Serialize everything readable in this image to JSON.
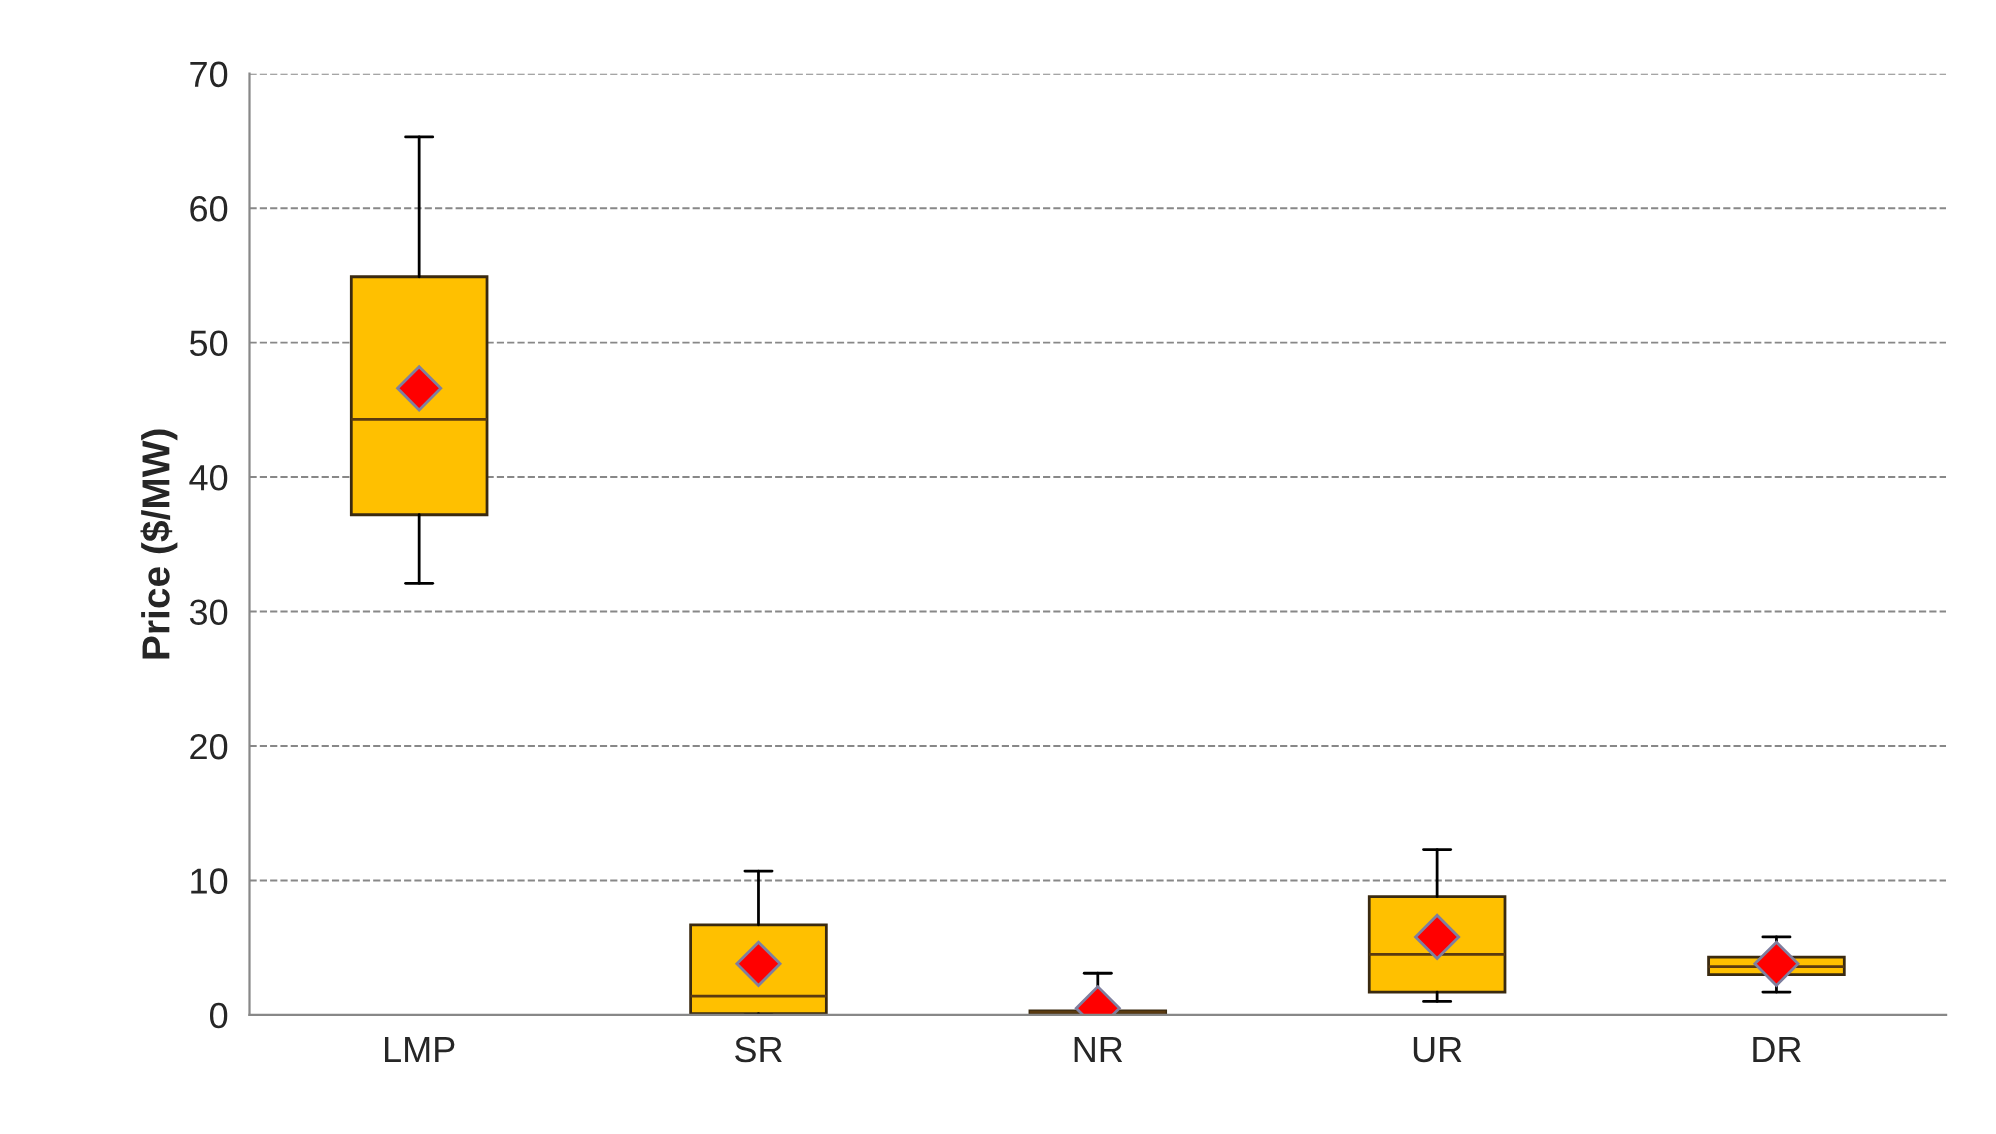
{
  "chart_data": {
    "type": "box",
    "ylabel": "Price ($/MW)",
    "color": "#ffc000",
    "marker": "diamond",
    "grid": "y",
    "categories": [
      "LMP",
      "SR",
      "NR",
      "UR",
      "DR"
    ],
    "boxes": [
      {
        "low": 32.1,
        "q1": 37.2,
        "median": 44.3,
        "q3": 54.9,
        "high": 65.3,
        "mean": 46.6
      },
      {
        "low": 0,
        "q1": 0.1,
        "median": 1.4,
        "q3": 6.7,
        "high": 10.7,
        "mean": 3.8
      },
      {
        "low": 0,
        "q1": 0.1,
        "median": 0.2,
        "q3": 0.3,
        "high": 3.1,
        "mean": 0.5
      },
      {
        "low": 1.0,
        "q1": 1.7,
        "median": 4.5,
        "q3": 8.8,
        "high": 12.3,
        "mean": 5.8
      },
      {
        "low": 1.7,
        "q1": 3.0,
        "median": 3.6,
        "q3": 4.3,
        "high": 5.8,
        "mean": 3.8
      }
    ],
    "ylim": [
      0,
      70
    ],
    "yticks": [
      0,
      10,
      20,
      30,
      40,
      50,
      60,
      70
    ]
  }
}
